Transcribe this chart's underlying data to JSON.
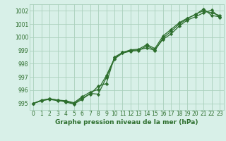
{
  "title": "Graphe pression niveau de la mer (hPa)",
  "x": [
    0,
    1,
    2,
    3,
    4,
    5,
    6,
    7,
    8,
    9,
    10,
    11,
    12,
    13,
    14,
    15,
    16,
    17,
    18,
    19,
    20,
    21,
    22,
    23
  ],
  "line1": [
    995.0,
    995.2,
    995.3,
    995.2,
    995.15,
    995.0,
    995.4,
    995.7,
    996.3,
    996.5,
    998.5,
    998.85,
    999.0,
    999.05,
    999.2,
    999.0,
    999.95,
    1000.45,
    1001.0,
    1001.4,
    1001.75,
    1002.0,
    1001.85,
    1001.65
  ],
  "line2": [
    995.0,
    995.25,
    995.35,
    995.25,
    995.2,
    995.05,
    995.5,
    995.85,
    996.05,
    997.1,
    998.4,
    998.85,
    999.05,
    999.1,
    999.45,
    999.15,
    1000.1,
    1000.6,
    1001.1,
    1001.45,
    1001.7,
    1002.15,
    1001.65,
    1001.55
  ],
  "line3": [
    995.0,
    995.2,
    995.35,
    995.25,
    995.1,
    994.95,
    995.3,
    995.75,
    995.7,
    996.95,
    998.35,
    998.8,
    998.95,
    999.0,
    999.35,
    999.05,
    999.85,
    1000.25,
    1000.85,
    1001.3,
    1001.55,
    1001.85,
    1002.05,
    1001.5
  ],
  "line_color": "#2d6e2d",
  "bg_color": "#d8f0e8",
  "grid_color": "#aad0bc",
  "text_color": "#2d6e2d",
  "ylim": [
    994.5,
    1002.5
  ],
  "yticks": [
    995,
    996,
    997,
    998,
    999,
    1000,
    1001,
    1002
  ],
  "xlim": [
    -0.5,
    23.5
  ],
  "xticks": [
    0,
    1,
    2,
    3,
    4,
    5,
    6,
    7,
    8,
    9,
    10,
    11,
    12,
    13,
    14,
    15,
    16,
    17,
    18,
    19,
    20,
    21,
    22,
    23
  ],
  "marker": "D",
  "markersize": 2.2,
  "linewidth": 0.9,
  "tick_fontsize": 5.5,
  "label_fontsize": 6.5
}
